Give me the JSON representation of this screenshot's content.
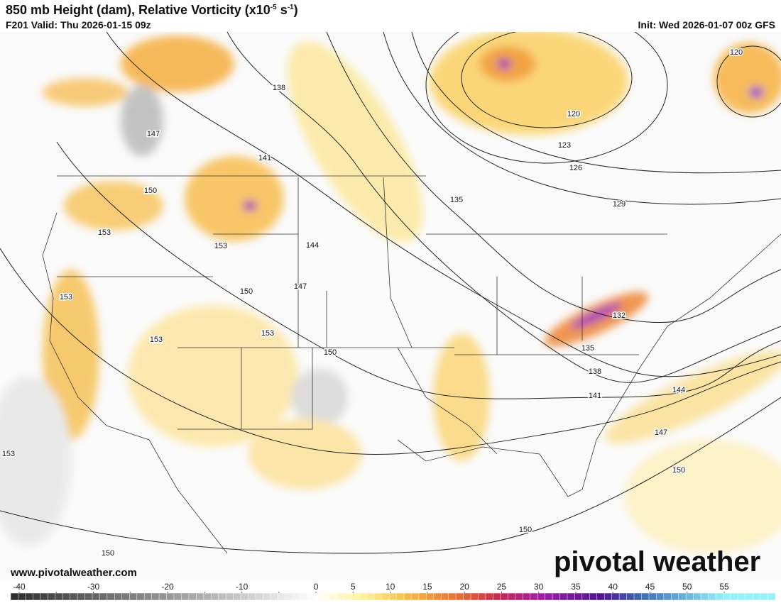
{
  "header": {
    "title": [
      "850 mb Height (dam), Relative Vorticity (x10",
      "-5",
      " s",
      "-1",
      ")"
    ],
    "valid": "F201 Valid: Thu 2026-01-15 09z",
    "init": "Init: Wed 2026-01-07 00z GFS"
  },
  "contour_labels": [
    138,
    147,
    141,
    150,
    153,
    153,
    144,
    150,
    147,
    153,
    153,
    153,
    150,
    135,
    120,
    123,
    126,
    129,
    120,
    132,
    135,
    138,
    141,
    144,
    147,
    150,
    150,
    153,
    150
  ],
  "colorbar": {
    "ticks": [
      -40,
      -35,
      -30,
      -25,
      -20,
      -15,
      -10,
      -5,
      0,
      5,
      10,
      15,
      20,
      25,
      30,
      35,
      40,
      45,
      50,
      55
    ],
    "labeled_ticks": [
      -40,
      -30,
      -20,
      -10,
      0,
      5,
      10,
      15,
      20,
      25,
      30,
      35,
      40,
      45,
      50,
      55
    ]
  },
  "footer": {
    "website": "www.pivotalweather.com",
    "watermark": "pivotal weather"
  }
}
